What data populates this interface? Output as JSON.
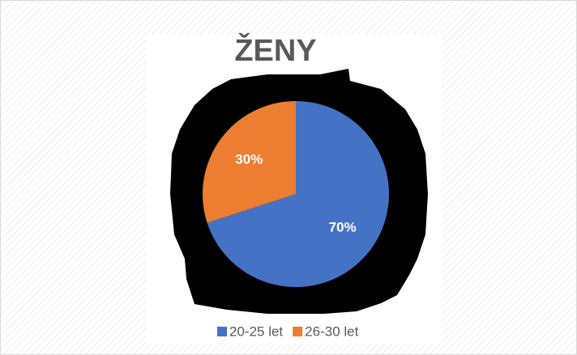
{
  "chart_data": {
    "type": "pie",
    "title": "ŽENY",
    "categories": [
      "20-25 let",
      "26-30 let"
    ],
    "values": [
      70,
      30
    ],
    "value_labels": [
      "70%",
      "30%"
    ],
    "colors": [
      "#4472c4",
      "#ed7d31"
    ],
    "legend": "bottom"
  }
}
